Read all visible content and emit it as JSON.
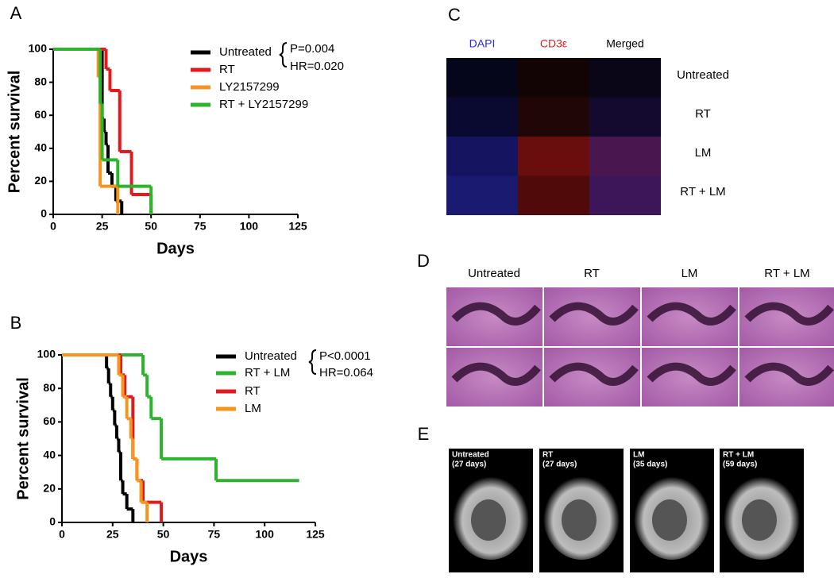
{
  "chart_data": [
    {
      "type": "line",
      "step": true,
      "panel": "A",
      "xlabel": "Days",
      "ylabel": "Percent survival",
      "xlim": [
        0,
        125
      ],
      "xticks": [
        0,
        25,
        50,
        75,
        100,
        125
      ],
      "ylim": [
        0,
        100
      ],
      "yticks": [
        0,
        20,
        40,
        60,
        80,
        100
      ],
      "annotations": [
        "P=0.004",
        "HR=0.020"
      ],
      "series": [
        {
          "name": "Untreated",
          "color": "#000000",
          "x": [
            0,
            25,
            26,
            27,
            28,
            30,
            32,
            35
          ],
          "values": [
            100,
            58,
            50,
            42,
            25,
            17,
            8,
            0
          ]
        },
        {
          "name": "RT",
          "color": "#e31a1c",
          "x": [
            0,
            27,
            29,
            34,
            40,
            50
          ],
          "values": [
            100,
            88,
            75,
            38,
            12,
            0
          ]
        },
        {
          "name": "LY2157299",
          "color": "#f7941d",
          "x": [
            0,
            23,
            24,
            33
          ],
          "values": [
            100,
            83,
            17,
            0
          ]
        },
        {
          "name": "RT + LY2157299",
          "color": "#2db32d",
          "x": [
            0,
            24,
            25,
            33,
            50
          ],
          "values": [
            100,
            67,
            33,
            17,
            0
          ]
        }
      ]
    },
    {
      "type": "line",
      "step": true,
      "panel": "B",
      "xlabel": "Days",
      "ylabel": "Percent survival",
      "xlim": [
        0,
        125
      ],
      "xticks": [
        0,
        25,
        50,
        75,
        100,
        125
      ],
      "ylim": [
        0,
        100
      ],
      "yticks": [
        0,
        20,
        40,
        60,
        80,
        100
      ],
      "annotations": [
        "P<0.0001",
        "HR=0.064"
      ],
      "series": [
        {
          "name": "Untreated",
          "color": "#000000",
          "x": [
            0,
            22,
            23,
            24,
            25,
            26,
            27,
            28,
            29,
            30,
            32,
            35
          ],
          "values": [
            100,
            92,
            83,
            75,
            67,
            58,
            50,
            42,
            25,
            17,
            8,
            0
          ]
        },
        {
          "name": "RT + LM",
          "color": "#2db32d",
          "x": [
            0,
            40,
            42,
            44,
            49,
            76,
            117
          ],
          "values": [
            100,
            88,
            75,
            62,
            38,
            25,
            25
          ]
        },
        {
          "name": "RT",
          "color": "#e31a1c",
          "x": [
            0,
            29,
            31,
            35,
            37,
            40,
            49
          ],
          "values": [
            100,
            88,
            75,
            38,
            25,
            12,
            0
          ]
        },
        {
          "name": "LM",
          "color": "#f7941d",
          "x": [
            0,
            28,
            30,
            32,
            34,
            35,
            37,
            39,
            42
          ],
          "values": [
            100,
            88,
            75,
            62,
            50,
            38,
            25,
            12,
            0
          ]
        }
      ]
    }
  ],
  "panel_c": {
    "label": "C",
    "columns": [
      "DAPI",
      "CD3ε",
      "Merged"
    ],
    "rows": [
      "Untreated",
      "RT",
      "LM",
      "RT + LM"
    ]
  },
  "panel_d": {
    "label": "D",
    "columns": [
      "Untreated",
      "RT",
      "LM",
      "RT + LM"
    ]
  },
  "panel_e": {
    "label": "E",
    "images": [
      [
        "Untreated",
        "(27 days)"
      ],
      [
        "RT",
        "(27 days)"
      ],
      [
        "LM",
        "(35 days)"
      ],
      [
        "RT + LM",
        "(59 days)"
      ]
    ]
  }
}
